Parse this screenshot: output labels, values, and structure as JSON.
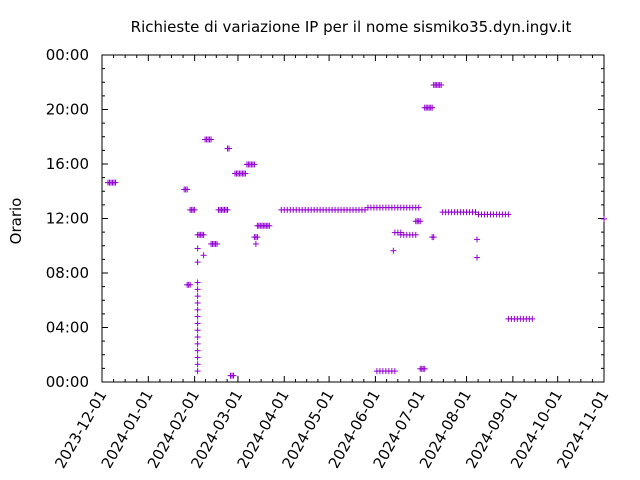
{
  "chart_data": {
    "type": "scatter",
    "title": "Richieste di variazione IP per il nome sismiko35.dyn.ingv.it",
    "ylabel": "Orario",
    "xlabel": "",
    "xlim": [
      "2023-12-01",
      "2024-11-01"
    ],
    "ylim": [
      "00:00",
      "24:00"
    ],
    "x_ticks": [
      "2023-12-01",
      "2024-01-01",
      "2024-02-01",
      "2024-03-01",
      "2024-04-01",
      "2024-05-01",
      "2024-06-01",
      "2024-07-01",
      "2024-08-01",
      "2024-09-01",
      "2024-10-01",
      "2024-11-01"
    ],
    "y_ticks": [
      "00:00",
      "04:00",
      "08:00",
      "12:00",
      "16:00",
      "20:00",
      "00:00"
    ],
    "grid": false,
    "marker": "plus",
    "color": "#9400d3",
    "points": [
      [
        "2023-12-05",
        "14:38"
      ],
      [
        "2023-12-06",
        "14:38"
      ],
      [
        "2023-12-07",
        "14:38"
      ],
      [
        "2023-12-08",
        "14:38"
      ],
      [
        "2023-12-09",
        "14:38"
      ],
      [
        "2023-12-10",
        "14:38"
      ],
      [
        "2024-01-25",
        "14:08"
      ],
      [
        "2024-01-26",
        "14:08"
      ],
      [
        "2024-01-27",
        "14:08"
      ],
      [
        "2024-01-27",
        "07:08"
      ],
      [
        "2024-01-28",
        "07:08"
      ],
      [
        "2024-01-29",
        "07:08"
      ],
      [
        "2024-01-29",
        "12:38"
      ],
      [
        "2024-01-30",
        "12:38"
      ],
      [
        "2024-01-31",
        "12:38"
      ],
      [
        "2024-02-01",
        "12:38"
      ],
      [
        "2024-02-03",
        "10:48"
      ],
      [
        "2024-02-04",
        "10:48"
      ],
      [
        "2024-02-05",
        "10:48"
      ],
      [
        "2024-02-06",
        "10:48"
      ],
      [
        "2024-02-07",
        "10:48"
      ],
      [
        "2024-02-03",
        "09:48"
      ],
      [
        "2024-02-03",
        "08:48"
      ],
      [
        "2024-02-03",
        "07:18"
      ],
      [
        "2024-02-03",
        "06:48"
      ],
      [
        "2024-02-03",
        "06:18"
      ],
      [
        "2024-02-03",
        "05:48"
      ],
      [
        "2024-02-03",
        "05:18"
      ],
      [
        "2024-02-03",
        "04:48"
      ],
      [
        "2024-02-03",
        "04:18"
      ],
      [
        "2024-02-03",
        "03:48"
      ],
      [
        "2024-02-03",
        "03:18"
      ],
      [
        "2024-02-03",
        "02:48"
      ],
      [
        "2024-02-03",
        "02:18"
      ],
      [
        "2024-02-03",
        "01:48"
      ],
      [
        "2024-02-03",
        "01:18"
      ],
      [
        "2024-02-03",
        "00:48"
      ],
      [
        "2024-02-07",
        "09:18"
      ],
      [
        "2024-02-08",
        "17:48"
      ],
      [
        "2024-02-09",
        "17:48"
      ],
      [
        "2024-02-10",
        "17:48"
      ],
      [
        "2024-02-11",
        "17:48"
      ],
      [
        "2024-02-12",
        "17:48"
      ],
      [
        "2024-02-12",
        "10:08"
      ],
      [
        "2024-02-13",
        "10:08"
      ],
      [
        "2024-02-14",
        "10:08"
      ],
      [
        "2024-02-15",
        "10:08"
      ],
      [
        "2024-02-16",
        "10:08"
      ],
      [
        "2024-02-17",
        "12:38"
      ],
      [
        "2024-02-18",
        "12:38"
      ],
      [
        "2024-02-19",
        "12:38"
      ],
      [
        "2024-02-20",
        "12:38"
      ],
      [
        "2024-02-21",
        "12:38"
      ],
      [
        "2024-02-22",
        "12:38"
      ],
      [
        "2024-02-23",
        "12:38"
      ],
      [
        "2024-02-23",
        "17:08"
      ],
      [
        "2024-02-24",
        "17:08"
      ],
      [
        "2024-02-25",
        "00:28"
      ],
      [
        "2024-02-26",
        "00:28"
      ],
      [
        "2024-02-27",
        "00:28"
      ],
      [
        "2024-02-28",
        "15:18"
      ],
      [
        "2024-02-29",
        "15:18"
      ],
      [
        "2024-03-01",
        "15:18"
      ],
      [
        "2024-03-02",
        "15:18"
      ],
      [
        "2024-03-03",
        "15:18"
      ],
      [
        "2024-03-04",
        "15:18"
      ],
      [
        "2024-03-05",
        "15:18"
      ],
      [
        "2024-03-06",
        "15:18"
      ],
      [
        "2024-03-07",
        "15:58"
      ],
      [
        "2024-03-08",
        "15:58"
      ],
      [
        "2024-03-09",
        "15:58"
      ],
      [
        "2024-03-10",
        "15:58"
      ],
      [
        "2024-03-11",
        "15:58"
      ],
      [
        "2024-03-12",
        "15:58"
      ],
      [
        "2024-03-12",
        "10:38"
      ],
      [
        "2024-03-13",
        "10:38"
      ],
      [
        "2024-03-14",
        "10:38"
      ],
      [
        "2024-03-13",
        "10:08"
      ],
      [
        "2024-03-14",
        "11:28"
      ],
      [
        "2024-03-15",
        "11:28"
      ],
      [
        "2024-03-16",
        "11:28"
      ],
      [
        "2024-03-17",
        "11:28"
      ],
      [
        "2024-03-18",
        "11:28"
      ],
      [
        "2024-03-19",
        "11:28"
      ],
      [
        "2024-03-20",
        "11:28"
      ],
      [
        "2024-03-21",
        "11:28"
      ],
      [
        "2024-03-22",
        "11:28"
      ],
      [
        "2024-03-30",
        "12:38"
      ],
      [
        "2024-04-01",
        "12:38"
      ],
      [
        "2024-04-03",
        "12:38"
      ],
      [
        "2024-04-05",
        "12:38"
      ],
      [
        "2024-04-07",
        "12:38"
      ],
      [
        "2024-04-09",
        "12:38"
      ],
      [
        "2024-04-11",
        "12:38"
      ],
      [
        "2024-04-13",
        "12:38"
      ],
      [
        "2024-04-15",
        "12:38"
      ],
      [
        "2024-04-17",
        "12:38"
      ],
      [
        "2024-04-19",
        "12:38"
      ],
      [
        "2024-04-21",
        "12:38"
      ],
      [
        "2024-04-23",
        "12:38"
      ],
      [
        "2024-04-25",
        "12:38"
      ],
      [
        "2024-04-27",
        "12:38"
      ],
      [
        "2024-04-29",
        "12:38"
      ],
      [
        "2024-05-01",
        "12:38"
      ],
      [
        "2024-05-03",
        "12:38"
      ],
      [
        "2024-05-05",
        "12:38"
      ],
      [
        "2024-05-07",
        "12:38"
      ],
      [
        "2024-05-09",
        "12:38"
      ],
      [
        "2024-05-11",
        "12:38"
      ],
      [
        "2024-05-13",
        "12:38"
      ],
      [
        "2024-05-15",
        "12:38"
      ],
      [
        "2024-05-17",
        "12:38"
      ],
      [
        "2024-05-19",
        "12:38"
      ],
      [
        "2024-05-21",
        "12:38"
      ],
      [
        "2024-05-23",
        "12:38"
      ],
      [
        "2024-05-25",
        "12:38"
      ],
      [
        "2024-05-27",
        "12:48"
      ],
      [
        "2024-05-29",
        "12:48"
      ],
      [
        "2024-05-31",
        "12:48"
      ],
      [
        "2024-06-02",
        "12:48"
      ],
      [
        "2024-06-04",
        "12:48"
      ],
      [
        "2024-06-06",
        "12:48"
      ],
      [
        "2024-06-08",
        "12:48"
      ],
      [
        "2024-06-10",
        "12:48"
      ],
      [
        "2024-06-12",
        "12:48"
      ],
      [
        "2024-06-14",
        "12:48"
      ],
      [
        "2024-06-16",
        "12:48"
      ],
      [
        "2024-06-18",
        "12:48"
      ],
      [
        "2024-06-20",
        "12:48"
      ],
      [
        "2024-06-22",
        "12:48"
      ],
      [
        "2024-06-24",
        "12:48"
      ],
      [
        "2024-06-26",
        "12:48"
      ],
      [
        "2024-06-28",
        "12:48"
      ],
      [
        "2024-06-30",
        "12:48"
      ],
      [
        "2024-06-02",
        "00:48"
      ],
      [
        "2024-06-04",
        "00:48"
      ],
      [
        "2024-06-06",
        "00:48"
      ],
      [
        "2024-06-08",
        "00:48"
      ],
      [
        "2024-06-10",
        "00:48"
      ],
      [
        "2024-06-12",
        "00:48"
      ],
      [
        "2024-06-14",
        "00:48"
      ],
      [
        "2024-06-13",
        "09:38"
      ],
      [
        "2024-06-14",
        "10:58"
      ],
      [
        "2024-06-16",
        "10:58"
      ],
      [
        "2024-06-18",
        "10:58"
      ],
      [
        "2024-06-18",
        "10:48"
      ],
      [
        "2024-06-20",
        "10:48"
      ],
      [
        "2024-06-22",
        "10:48"
      ],
      [
        "2024-06-24",
        "10:48"
      ],
      [
        "2024-06-26",
        "10:48"
      ],
      [
        "2024-06-28",
        "10:48"
      ],
      [
        "2024-06-28",
        "11:48"
      ],
      [
        "2024-06-29",
        "11:48"
      ],
      [
        "2024-06-30",
        "11:48"
      ],
      [
        "2024-07-01",
        "11:48"
      ],
      [
        "2024-07-01",
        "00:58"
      ],
      [
        "2024-07-02",
        "00:58"
      ],
      [
        "2024-07-03",
        "00:58"
      ],
      [
        "2024-07-04",
        "00:58"
      ],
      [
        "2024-07-04",
        "20:08"
      ],
      [
        "2024-07-05",
        "20:08"
      ],
      [
        "2024-07-06",
        "20:08"
      ],
      [
        "2024-07-07",
        "20:08"
      ],
      [
        "2024-07-08",
        "20:08"
      ],
      [
        "2024-07-09",
        "20:08"
      ],
      [
        "2024-07-09",
        "10:38"
      ],
      [
        "2024-07-10",
        "10:38"
      ],
      [
        "2024-07-10",
        "21:48"
      ],
      [
        "2024-07-11",
        "21:48"
      ],
      [
        "2024-07-12",
        "21:48"
      ],
      [
        "2024-07-13",
        "21:48"
      ],
      [
        "2024-07-14",
        "21:48"
      ],
      [
        "2024-07-15",
        "21:48"
      ],
      [
        "2024-07-16",
        "12:28"
      ],
      [
        "2024-07-18",
        "12:28"
      ],
      [
        "2024-07-20",
        "12:28"
      ],
      [
        "2024-07-22",
        "12:28"
      ],
      [
        "2024-07-24",
        "12:28"
      ],
      [
        "2024-07-26",
        "12:28"
      ],
      [
        "2024-07-28",
        "12:28"
      ],
      [
        "2024-07-30",
        "12:28"
      ],
      [
        "2024-08-01",
        "12:28"
      ],
      [
        "2024-08-03",
        "12:28"
      ],
      [
        "2024-08-05",
        "12:28"
      ],
      [
        "2024-08-07",
        "12:28"
      ],
      [
        "2024-08-08",
        "10:28"
      ],
      [
        "2024-08-08",
        "09:08"
      ],
      [
        "2024-08-09",
        "12:18"
      ],
      [
        "2024-08-11",
        "12:18"
      ],
      [
        "2024-08-13",
        "12:18"
      ],
      [
        "2024-08-15",
        "12:18"
      ],
      [
        "2024-08-17",
        "12:18"
      ],
      [
        "2024-08-19",
        "12:18"
      ],
      [
        "2024-08-21",
        "12:18"
      ],
      [
        "2024-08-23",
        "12:18"
      ],
      [
        "2024-08-25",
        "12:18"
      ],
      [
        "2024-08-27",
        "12:18"
      ],
      [
        "2024-08-29",
        "12:18"
      ],
      [
        "2024-08-29",
        "04:38"
      ],
      [
        "2024-08-31",
        "04:38"
      ],
      [
        "2024-09-02",
        "04:38"
      ],
      [
        "2024-09-04",
        "04:38"
      ],
      [
        "2024-09-06",
        "04:38"
      ],
      [
        "2024-09-08",
        "04:38"
      ],
      [
        "2024-09-10",
        "04:38"
      ],
      [
        "2024-09-12",
        "04:38"
      ],
      [
        "2024-09-14",
        "04:38"
      ],
      [
        "2024-11-01",
        "11:58"
      ]
    ]
  }
}
